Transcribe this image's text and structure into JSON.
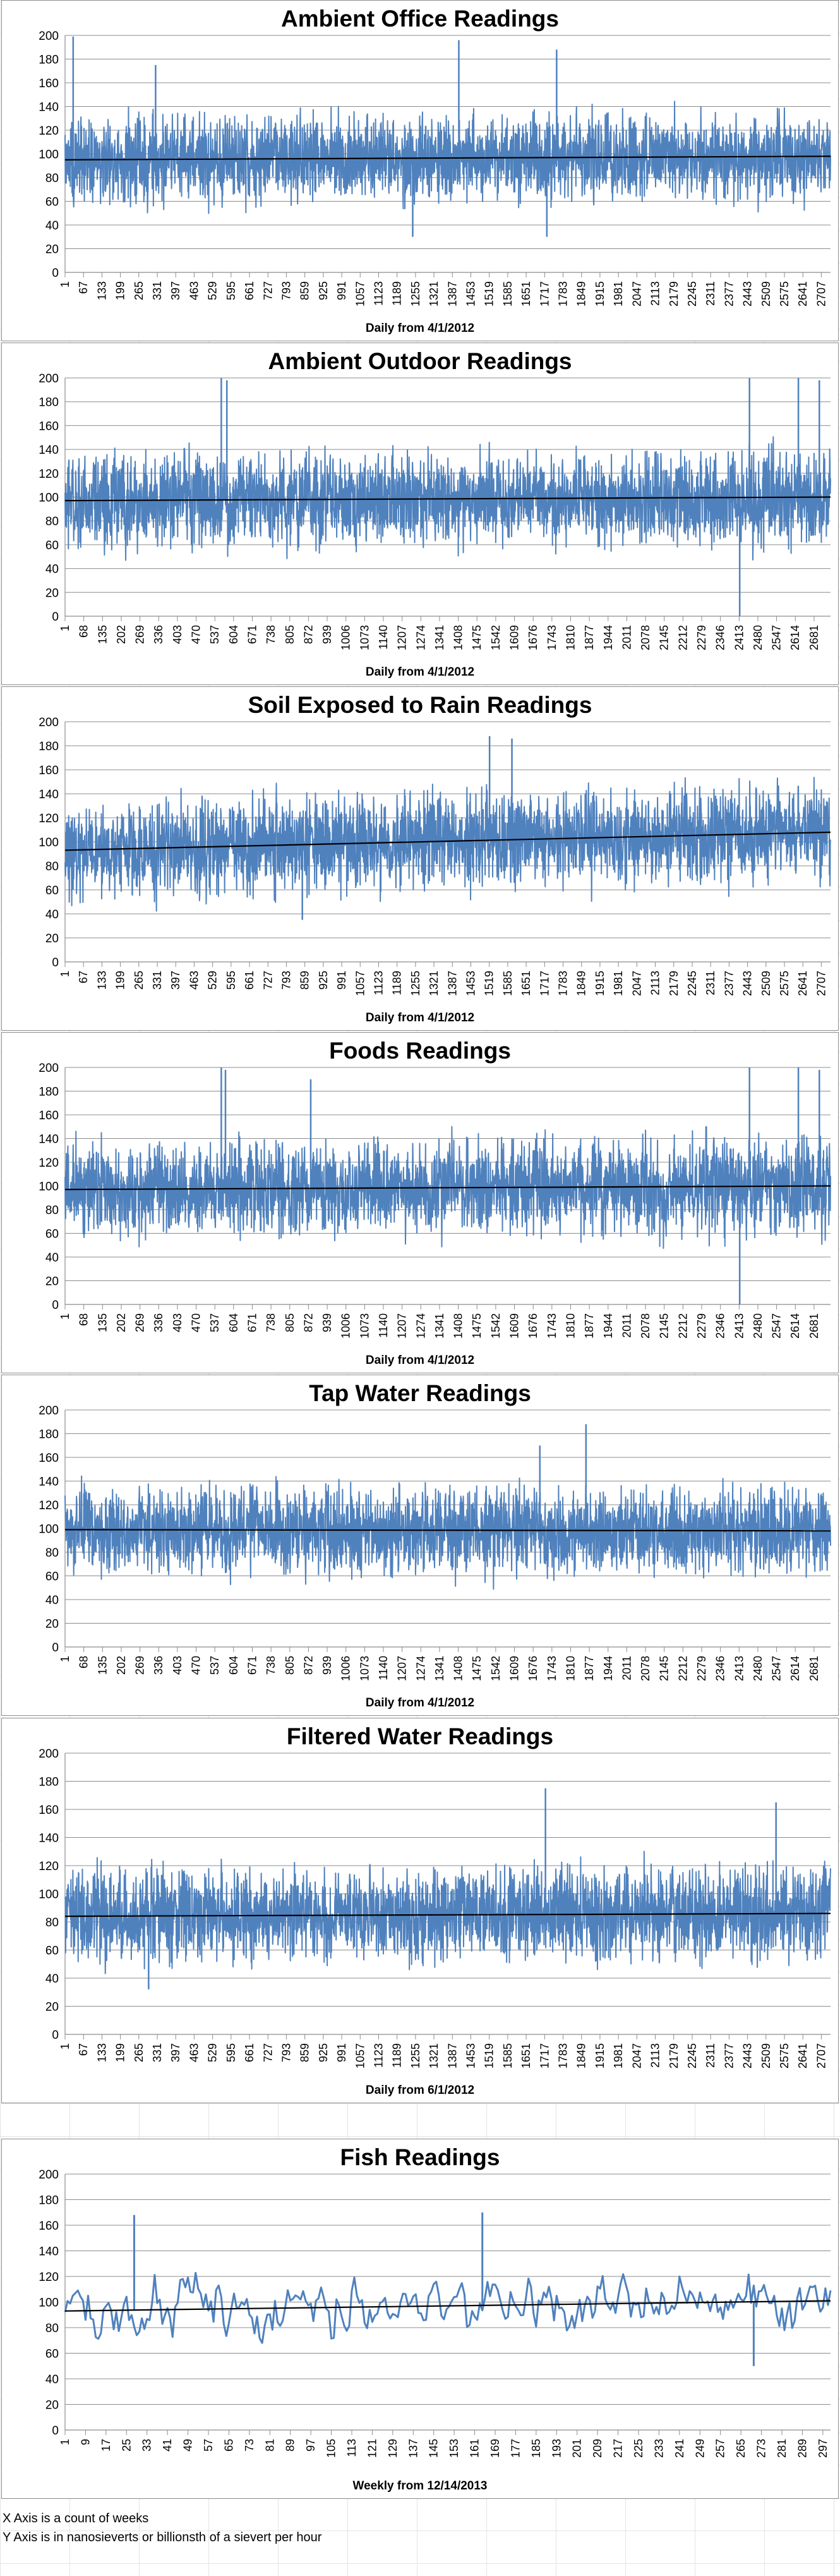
{
  "chart_data": [
    {
      "type": "line",
      "title": "Ambient Office Readings",
      "xlabel": "Daily from 4/1/2012",
      "ylabel": "",
      "ylim": [
        0,
        200
      ],
      "yticks": [
        0,
        20,
        40,
        60,
        80,
        100,
        120,
        140,
        160,
        180,
        200
      ],
      "xticks": [
        1,
        67,
        133,
        199,
        265,
        331,
        397,
        463,
        529,
        595,
        661,
        727,
        793,
        859,
        925,
        991,
        1057,
        1123,
        1189,
        1255,
        1321,
        1387,
        1453,
        1519,
        1585,
        1651,
        1717,
        1783,
        1849,
        1915,
        1981,
        2047,
        2113,
        2179,
        2245,
        2311,
        2377,
        2443,
        2509,
        2575,
        2641,
        2707
      ],
      "n": 2740,
      "trend": [
        95,
        98
      ],
      "spread": 22,
      "spikes": [
        [
          30,
          199
        ],
        [
          325,
          175
        ],
        [
          1410,
          196
        ],
        [
          1760,
          188
        ]
      ],
      "dips": [
        [
          1245,
          30
        ],
        [
          1725,
          30
        ]
      ],
      "grid": true,
      "legend": "none"
    },
    {
      "type": "line",
      "title": "Ambient Outdoor Readings",
      "xlabel": "Daily from 4/1/2012",
      "ylabel": "",
      "ylim": [
        0,
        200
      ],
      "yticks": [
        0,
        20,
        40,
        60,
        80,
        100,
        120,
        140,
        160,
        180,
        200
      ],
      "xticks": [
        1,
        68,
        135,
        202,
        269,
        336,
        403,
        470,
        537,
        604,
        671,
        738,
        805,
        872,
        939,
        1006,
        1073,
        1140,
        1207,
        1274,
        1341,
        1408,
        1475,
        1542,
        1609,
        1676,
        1743,
        1810,
        1877,
        1944,
        2011,
        2078,
        2145,
        2212,
        2279,
        2346,
        2413,
        2480,
        2547,
        2614,
        2681
      ],
      "n": 2740,
      "trend": [
        97,
        100
      ],
      "spread": 24,
      "spikes": [
        [
          560,
          200
        ],
        [
          580,
          198
        ],
        [
          2450,
          200
        ],
        [
          2625,
          200
        ],
        [
          2700,
          198
        ]
      ],
      "dips": [
        [
          2415,
          0
        ]
      ],
      "grid": true,
      "legend": "none"
    },
    {
      "type": "line",
      "title": "Soil Exposed to Rain Readings",
      "xlabel": "Daily from 4/1/2012",
      "ylabel": "",
      "ylim": [
        0,
        200
      ],
      "yticks": [
        0,
        20,
        40,
        60,
        80,
        100,
        120,
        140,
        160,
        180,
        200
      ],
      "xticks": [
        1,
        67,
        133,
        199,
        265,
        331,
        397,
        463,
        529,
        595,
        661,
        727,
        793,
        859,
        925,
        991,
        1057,
        1123,
        1189,
        1255,
        1321,
        1387,
        1453,
        1519,
        1585,
        1651,
        1717,
        1783,
        1849,
        1915,
        1981,
        2047,
        2113,
        2179,
        2245,
        2311,
        2377,
        2443,
        2509,
        2575,
        2641,
        2707
      ],
      "n": 2740,
      "trend": [
        93,
        108
      ],
      "spread": 24,
      "spikes": [
        [
          1520,
          188
        ],
        [
          1600,
          186
        ]
      ],
      "dips": [
        [
          850,
          35
        ]
      ],
      "grid": true,
      "legend": "none"
    },
    {
      "type": "line",
      "title": "Foods Readings",
      "xlabel": "Daily from 4/1/2012",
      "ylabel": "",
      "ylim": [
        0,
        200
      ],
      "yticks": [
        0,
        20,
        40,
        60,
        80,
        100,
        120,
        140,
        160,
        180,
        200
      ],
      "xticks": [
        1,
        68,
        135,
        202,
        269,
        336,
        403,
        470,
        537,
        604,
        671,
        738,
        805,
        872,
        939,
        1006,
        1073,
        1140,
        1207,
        1274,
        1341,
        1408,
        1475,
        1542,
        1609,
        1676,
        1743,
        1810,
        1877,
        1944,
        2011,
        2078,
        2145,
        2212,
        2279,
        2346,
        2413,
        2480,
        2547,
        2614,
        2681
      ],
      "n": 2740,
      "trend": [
        97,
        100
      ],
      "spread": 24,
      "spikes": [
        [
          560,
          200
        ],
        [
          575,
          198
        ],
        [
          880,
          190
        ],
        [
          2450,
          200
        ],
        [
          2625,
          200
        ],
        [
          2700,
          198
        ]
      ],
      "dips": [
        [
          2415,
          0
        ]
      ],
      "grid": true,
      "legend": "none"
    },
    {
      "type": "line",
      "title": "Tap Water Readings",
      "xlabel": "Daily from 4/1/2012",
      "ylabel": "",
      "ylim": [
        0,
        200
      ],
      "yticks": [
        0,
        20,
        40,
        60,
        80,
        100,
        120,
        140,
        160,
        180,
        200
      ],
      "xticks": [
        1,
        68,
        135,
        202,
        269,
        336,
        403,
        470,
        537,
        604,
        671,
        738,
        805,
        872,
        939,
        1006,
        1073,
        1140,
        1207,
        1274,
        1341,
        1408,
        1475,
        1542,
        1609,
        1676,
        1743,
        1810,
        1877,
        1944,
        2011,
        2078,
        2145,
        2212,
        2279,
        2346,
        2413,
        2480,
        2547,
        2614,
        2681
      ],
      "n": 2740,
      "trend": [
        99,
        98
      ],
      "spread": 22,
      "spikes": [
        [
          1865,
          188
        ],
        [
          1700,
          170
        ]
      ],
      "dips": [],
      "grid": true,
      "legend": "none"
    },
    {
      "type": "line",
      "title": "Filtered Water Readings",
      "xlabel": "Daily from 6/1/2012",
      "ylabel": "",
      "ylim": [
        0,
        200
      ],
      "yticks": [
        0,
        20,
        40,
        60,
        80,
        100,
        120,
        140,
        160,
        180,
        200
      ],
      "xticks": [
        1,
        67,
        133,
        199,
        265,
        331,
        397,
        463,
        529,
        595,
        661,
        727,
        793,
        859,
        925,
        991,
        1057,
        1123,
        1189,
        1255,
        1321,
        1387,
        1453,
        1519,
        1585,
        1651,
        1717,
        1783,
        1849,
        1915,
        1981,
        2047,
        2113,
        2179,
        2245,
        2311,
        2377,
        2443,
        2509,
        2575,
        2641,
        2707
      ],
      "n": 2740,
      "trend": [
        84,
        86
      ],
      "spread": 20,
      "spikes": [
        [
          1720,
          175
        ],
        [
          2545,
          165
        ]
      ],
      "dips": [
        [
          300,
          32
        ]
      ],
      "grid": true,
      "legend": "none"
    },
    {
      "type": "line",
      "title": "Fish Readings",
      "xlabel": "Weekly from 12/14/2013",
      "ylabel": "",
      "ylim": [
        0,
        200
      ],
      "yticks": [
        0,
        20,
        40,
        60,
        80,
        100,
        120,
        140,
        160,
        180,
        200
      ],
      "xticks": [
        1,
        9,
        17,
        25,
        33,
        41,
        49,
        57,
        65,
        73,
        81,
        89,
        97,
        105,
        113,
        121,
        129,
        137,
        145,
        153,
        161,
        169,
        177,
        185,
        193,
        201,
        209,
        217,
        225,
        233,
        241,
        249,
        257,
        265,
        273,
        281,
        289,
        297
      ],
      "n": 300,
      "trend": [
        93,
        101
      ],
      "spread": 15,
      "spikes": [
        [
          28,
          168
        ],
        [
          164,
          170
        ]
      ],
      "dips": [
        [
          270,
          50
        ]
      ],
      "grid": true,
      "legend": "none"
    }
  ],
  "notes": [
    "X Axis is a count of weeks",
    "Y Axis is in nanosieverts or billionsth of a sievert per hour"
  ],
  "colors": {
    "series": "#4f81bd",
    "trend": "#000000",
    "grid": "#8c8c8c"
  }
}
